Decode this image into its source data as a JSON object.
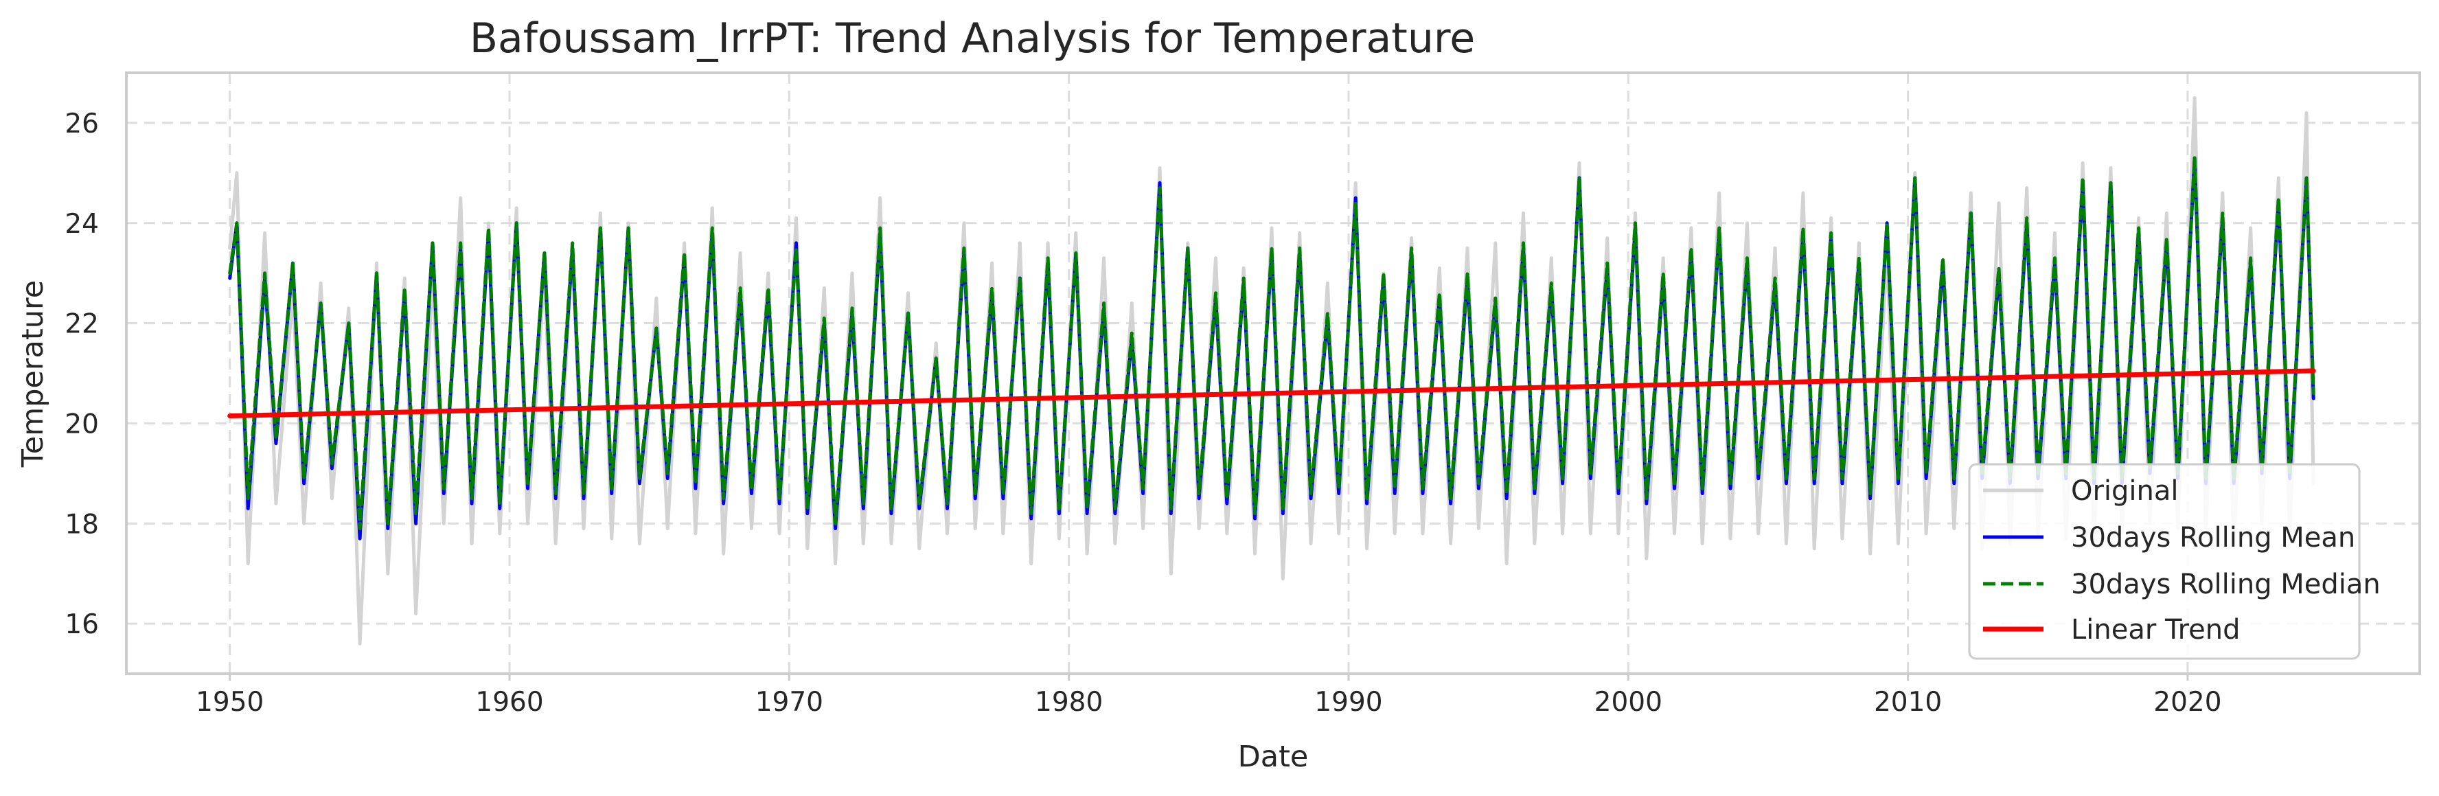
{
  "chart_data": {
    "type": "line",
    "title": "Bafoussam_IrrPT: Trend Analysis for Temperature",
    "xlabel": "Date",
    "ylabel": "Temperature",
    "xlim": [
      1946.3,
      2028.3
    ],
    "ylim": [
      15.0,
      27.0
    ],
    "x_ticks": [
      1950,
      1960,
      1970,
      1980,
      1990,
      2000,
      2010,
      2020
    ],
    "y_ticks": [
      16,
      18,
      20,
      22,
      24,
      26
    ],
    "grid": true,
    "legend_position": "lower right",
    "series": [
      {
        "name": "Original",
        "color": "#d3d3d3",
        "style": "solid",
        "note_kind": "daily values, shown by seasonal cycle peaks and troughs",
        "x": [
          1950.0,
          1950.25,
          1950.65,
          1951.25,
          1951.65,
          1952.25,
          1952.65,
          1953.25,
          1953.65,
          1954.25,
          1954.65,
          1955.25,
          1955.65,
          1956.25,
          1956.65,
          1957.25,
          1957.65,
          1958.25,
          1958.65,
          1959.25,
          1959.65,
          1960.25,
          1960.65,
          1961.25,
          1961.65,
          1962.25,
          1962.65,
          1963.25,
          1963.65,
          1964.25,
          1964.65,
          1965.25,
          1965.65,
          1966.25,
          1966.65,
          1967.25,
          1967.65,
          1968.25,
          1968.65,
          1969.25,
          1969.65,
          1970.25,
          1970.65,
          1971.25,
          1971.65,
          1972.25,
          1972.65,
          1973.25,
          1973.65,
          1974.25,
          1974.65,
          1975.25,
          1975.65,
          1976.25,
          1976.65,
          1977.25,
          1977.65,
          1978.25,
          1978.65,
          1979.25,
          1979.65,
          1980.25,
          1980.65,
          1981.25,
          1981.65,
          1982.25,
          1982.65,
          1983.25,
          1983.65,
          1984.25,
          1984.65,
          1985.25,
          1985.65,
          1986.25,
          1986.65,
          1987.25,
          1987.65,
          1988.25,
          1988.65,
          1989.25,
          1989.65,
          1990.25,
          1990.65,
          1991.25,
          1991.65,
          1992.25,
          1992.65,
          1993.25,
          1993.65,
          1994.25,
          1994.65,
          1995.25,
          1995.65,
          1996.25,
          1996.65,
          1997.25,
          1997.65,
          1998.25,
          1998.65,
          1999.25,
          1999.65,
          2000.25,
          2000.65,
          2001.25,
          2001.65,
          2002.25,
          2002.65,
          2003.25,
          2003.65,
          2004.25,
          2004.65,
          2005.25,
          2005.65,
          2006.25,
          2006.65,
          2007.25,
          2007.65,
          2008.25,
          2008.65,
          2009.25,
          2009.65,
          2010.25,
          2010.65,
          2011.25,
          2011.65,
          2012.25,
          2012.65,
          2013.25,
          2013.65,
          2014.25,
          2014.65,
          2015.25,
          2015.65,
          2016.25,
          2016.65,
          2017.25,
          2017.65,
          2018.25,
          2018.65,
          2019.25,
          2019.65,
          2020.25,
          2020.65,
          2021.25,
          2021.65,
          2022.25,
          2022.65,
          2023.25,
          2023.65,
          2024.25,
          2024.5
        ],
        "y": [
          23.5,
          25.0,
          17.2,
          23.8,
          18.4,
          22.6,
          18.0,
          22.8,
          18.5,
          22.3,
          15.6,
          23.2,
          17.0,
          22.9,
          16.2,
          23.0,
          18.0,
          24.5,
          17.6,
          24.0,
          17.8,
          24.3,
          18.0,
          23.0,
          17.6,
          23.5,
          17.9,
          24.2,
          17.7,
          24.0,
          17.6,
          22.5,
          17.9,
          23.6,
          17.8,
          24.3,
          17.4,
          23.4,
          17.9,
          23.0,
          17.8,
          24.1,
          17.5,
          22.7,
          17.2,
          23.0,
          17.6,
          24.5,
          17.6,
          22.6,
          17.5,
          21.6,
          17.8,
          24.0,
          17.9,
          23.2,
          17.8,
          23.6,
          17.2,
          23.6,
          17.7,
          23.8,
          17.4,
          23.3,
          17.6,
          22.4,
          17.9,
          25.1,
          17.0,
          23.6,
          17.9,
          23.3,
          17.8,
          23.1,
          17.4,
          23.9,
          16.9,
          23.8,
          17.6,
          22.8,
          17.8,
          24.8,
          17.5,
          23.0,
          17.8,
          23.7,
          17.8,
          23.1,
          17.6,
          23.5,
          17.9,
          23.6,
          17.2,
          24.2,
          17.6,
          23.3,
          17.8,
          25.2,
          17.8,
          23.7,
          17.8,
          24.2,
          17.3,
          23.3,
          17.8,
          23.9,
          17.6,
          24.6,
          17.7,
          24.0,
          17.8,
          23.5,
          17.6,
          24.6,
          17.5,
          24.1,
          17.7,
          23.6,
          17.4,
          23.4,
          17.6,
          25.0,
          17.8,
          23.2,
          17.9,
          24.6,
          17.5,
          24.4,
          17.6,
          24.7,
          17.8,
          23.8,
          17.7,
          25.2,
          17.7,
          25.1,
          17.8,
          24.1,
          18.0,
          24.2,
          17.9,
          26.5,
          17.9,
          24.6,
          17.6,
          23.9,
          18.0,
          24.9,
          17.8,
          26.2,
          18.8
        ]
      },
      {
        "name": "30days Rolling Mean",
        "color": "#0000ff",
        "style": "solid",
        "x": [
          1950.0,
          1950.25,
          1950.65,
          1951.25,
          1951.65,
          1952.25,
          1952.65,
          1953.25,
          1953.65,
          1954.25,
          1954.65,
          1955.25,
          1955.65,
          1956.25,
          1956.65,
          1957.25,
          1957.65,
          1958.25,
          1958.65,
          1959.25,
          1959.65,
          1960.25,
          1960.65,
          1961.25,
          1961.65,
          1962.25,
          1962.65,
          1963.25,
          1963.65,
          1964.25,
          1964.65,
          1965.25,
          1965.65,
          1966.25,
          1966.65,
          1967.25,
          1967.65,
          1968.25,
          1968.65,
          1969.25,
          1969.65,
          1970.25,
          1970.65,
          1971.25,
          1971.65,
          1972.25,
          1972.65,
          1973.25,
          1973.65,
          1974.25,
          1974.65,
          1975.25,
          1975.65,
          1976.25,
          1976.65,
          1977.25,
          1977.65,
          1978.25,
          1978.65,
          1979.25,
          1979.65,
          1980.25,
          1980.65,
          1981.25,
          1981.65,
          1982.25,
          1982.65,
          1983.25,
          1983.65,
          1984.25,
          1984.65,
          1985.25,
          1985.65,
          1986.25,
          1986.65,
          1987.25,
          1987.65,
          1988.25,
          1988.65,
          1989.25,
          1989.65,
          1990.25,
          1990.65,
          1991.25,
          1991.65,
          1992.25,
          1992.65,
          1993.25,
          1993.65,
          1994.25,
          1994.65,
          1995.25,
          1995.65,
          1996.25,
          1996.65,
          1997.25,
          1997.65,
          1998.25,
          1998.65,
          1999.25,
          1999.65,
          2000.25,
          2000.65,
          2001.25,
          2001.65,
          2002.25,
          2002.65,
          2003.25,
          2003.65,
          2004.25,
          2004.65,
          2005.25,
          2005.65,
          2006.25,
          2006.65,
          2007.25,
          2007.65,
          2008.25,
          2008.65,
          2009.25,
          2009.65,
          2010.25,
          2010.65,
          2011.25,
          2011.65,
          2012.25,
          2012.65,
          2013.25,
          2013.65,
          2014.25,
          2014.65,
          2015.25,
          2015.65,
          2016.25,
          2016.65,
          2017.25,
          2017.65,
          2018.25,
          2018.65,
          2019.25,
          2019.65,
          2020.25,
          2020.65,
          2021.25,
          2021.65,
          2022.25,
          2022.65,
          2023.25,
          2023.65,
          2024.25,
          2024.5
        ],
        "y": [
          22.9,
          24.0,
          18.3,
          22.9,
          19.6,
          23.2,
          18.8,
          22.4,
          19.1,
          22.0,
          17.7,
          23.0,
          17.9,
          22.6,
          18.0,
          23.6,
          18.6,
          23.5,
          18.4,
          23.8,
          18.3,
          24.0,
          18.7,
          23.4,
          18.5,
          23.5,
          18.5,
          23.9,
          18.6,
          23.9,
          18.8,
          21.9,
          18.9,
          23.3,
          18.7,
          23.8,
          18.4,
          22.6,
          18.6,
          22.6,
          18.4,
          23.6,
          18.2,
          22.0,
          17.9,
          22.2,
          18.3,
          23.8,
          18.2,
          22.2,
          18.3,
          21.3,
          18.3,
          23.4,
          18.5,
          22.6,
          18.5,
          22.9,
          18.1,
          23.2,
          18.2,
          23.4,
          18.2,
          22.3,
          18.2,
          21.7,
          18.6,
          24.8,
          18.2,
          23.5,
          18.5,
          22.5,
          18.4,
          22.8,
          18.1,
          23.4,
          18.2,
          23.4,
          18.5,
          22.1,
          18.6,
          24.5,
          18.4,
          22.9,
          18.6,
          23.4,
          18.6,
          22.5,
          18.4,
          22.9,
          18.7,
          22.4,
          18.5,
          23.5,
          18.6,
          22.7,
          18.8,
          24.9,
          18.9,
          23.1,
          18.6,
          23.9,
          18.4,
          22.9,
          18.7,
          23.4,
          18.6,
          23.8,
          18.7,
          23.2,
          18.9,
          22.8,
          18.8,
          23.8,
          18.8,
          23.7,
          18.8,
          23.2,
          18.5,
          24.0,
          18.8,
          24.9,
          18.9,
          23.2,
          18.8,
          24.2,
          18.9,
          23.0,
          18.8,
          24.0,
          18.9,
          23.2,
          18.9,
          24.8,
          18.8,
          24.8,
          18.8,
          23.8,
          19.0,
          23.6,
          18.9,
          25.3,
          18.8,
          24.1,
          18.8,
          23.2,
          19.0,
          24.4,
          18.9,
          24.9,
          20.5
        ]
      },
      {
        "name": "30days Rolling Median",
        "color": "#008000",
        "style": "dashed",
        "x": [
          1950.0,
          1950.25,
          1950.65,
          1951.25,
          1951.65,
          1952.25,
          1952.65,
          1953.25,
          1953.65,
          1954.25,
          1954.65,
          1955.25,
          1955.65,
          1956.25,
          1956.65,
          1957.25,
          1957.65,
          1958.25,
          1958.65,
          1959.25,
          1959.65,
          1960.25,
          1960.65,
          1961.25,
          1961.65,
          1962.25,
          1962.65,
          1963.25,
          1963.65,
          1964.25,
          1964.65,
          1965.25,
          1965.65,
          1966.25,
          1966.65,
          1967.25,
          1967.65,
          1968.25,
          1968.65,
          1969.25,
          1969.65,
          1970.25,
          1970.65,
          1971.25,
          1971.65,
          1972.25,
          1972.65,
          1973.25,
          1973.65,
          1974.25,
          1974.65,
          1975.25,
          1975.65,
          1976.25,
          1976.65,
          1977.25,
          1977.65,
          1978.25,
          1978.65,
          1979.25,
          1979.65,
          1980.25,
          1980.65,
          1981.25,
          1981.65,
          1982.25,
          1982.65,
          1983.25,
          1983.65,
          1984.25,
          1984.65,
          1985.25,
          1985.65,
          1986.25,
          1986.65,
          1987.25,
          1987.65,
          1988.25,
          1988.65,
          1989.25,
          1989.65,
          1990.25,
          1990.65,
          1991.25,
          1991.65,
          1992.25,
          1992.65,
          1993.25,
          1993.65,
          1994.25,
          1994.65,
          1995.25,
          1995.65,
          1996.25,
          1996.65,
          1997.25,
          1997.65,
          1998.25,
          1998.65,
          1999.25,
          1999.65,
          2000.25,
          2000.65,
          2001.25,
          2001.65,
          2002.25,
          2002.65,
          2003.25,
          2003.65,
          2004.25,
          2004.65,
          2005.25,
          2005.65,
          2006.25,
          2006.65,
          2007.25,
          2007.65,
          2008.25,
          2008.65,
          2009.25,
          2009.65,
          2010.25,
          2010.65,
          2011.25,
          2011.65,
          2012.25,
          2012.65,
          2013.25,
          2013.65,
          2014.25,
          2014.65,
          2015.25,
          2015.65,
          2016.25,
          2016.65,
          2017.25,
          2017.65,
          2018.25,
          2018.65,
          2019.25,
          2019.65,
          2020.25,
          2020.65,
          2021.25,
          2021.65,
          2022.25,
          2022.65,
          2023.25,
          2023.65,
          2024.25,
          2024.5
        ],
        "y": [
          23.0,
          24.0,
          18.5,
          23.0,
          19.7,
          23.2,
          18.9,
          22.4,
          19.2,
          22.0,
          17.9,
          23.0,
          18.0,
          22.7,
          18.2,
          23.6,
          18.7,
          23.6,
          18.5,
          23.9,
          18.4,
          24.0,
          18.8,
          23.4,
          18.6,
          23.6,
          18.6,
          23.9,
          18.7,
          23.9,
          18.9,
          21.9,
          19.0,
          23.4,
          18.8,
          23.9,
          18.5,
          22.7,
          18.7,
          22.7,
          18.5,
          23.5,
          18.3,
          22.1,
          18.0,
          22.3,
          18.4,
          23.9,
          18.3,
          22.2,
          18.4,
          21.3,
          18.4,
          23.5,
          18.6,
          22.7,
          18.6,
          22.9,
          18.2,
          23.3,
          18.3,
          23.4,
          18.3,
          22.4,
          18.3,
          21.8,
          18.7,
          24.7,
          18.3,
          23.5,
          18.6,
          22.6,
          18.5,
          22.9,
          18.2,
          23.5,
          18.3,
          23.5,
          18.6,
          22.2,
          18.7,
          24.4,
          18.5,
          23.0,
          18.7,
          23.5,
          18.7,
          22.6,
          18.5,
          23.0,
          18.8,
          22.5,
          18.6,
          23.6,
          18.7,
          22.8,
          18.9,
          24.9,
          19.0,
          23.2,
          18.7,
          24.0,
          18.5,
          23.0,
          18.8,
          23.5,
          18.7,
          23.9,
          18.8,
          23.3,
          19.0,
          22.9,
          18.9,
          23.9,
          18.9,
          23.8,
          18.9,
          23.3,
          18.6,
          24.0,
          18.9,
          24.9,
          19.0,
          23.3,
          18.9,
          24.2,
          19.0,
          23.1,
          18.9,
          24.1,
          19.0,
          23.3,
          19.0,
          24.9,
          18.9,
          24.8,
          18.9,
          23.9,
          19.1,
          23.7,
          19.0,
          25.3,
          18.9,
          24.2,
          18.9,
          23.3,
          19.1,
          24.5,
          19.0,
          24.9,
          20.6
        ]
      },
      {
        "name": "Linear Trend",
        "color": "#ff0000",
        "style": "solid",
        "x": [
          1950.0,
          2024.5
        ],
        "y": [
          20.15,
          21.05
        ]
      }
    ]
  }
}
